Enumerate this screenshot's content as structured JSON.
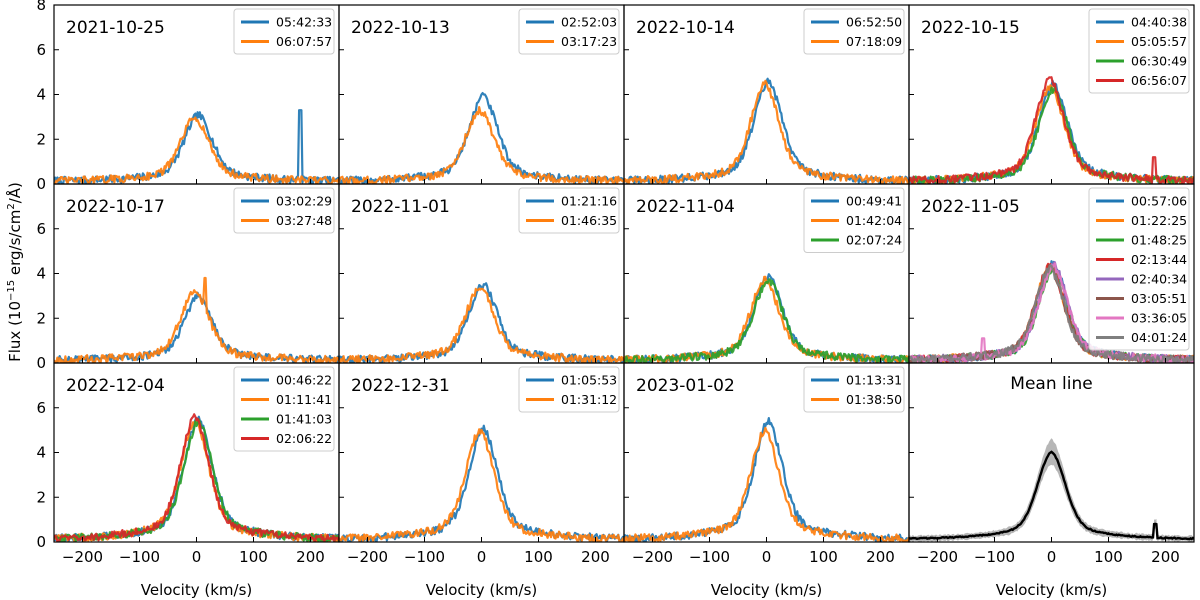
{
  "figure": {
    "ylabel": "Flux (10",
    "ylabel_exp": "−15",
    "ylabel_unit": " erg/s/cm",
    "ylabel_sq": "2",
    "ylabel_end": "/Å)",
    "xlabel": "Velocity (km/s)"
  },
  "colors": [
    "#1f77b4",
    "#ff7f0e",
    "#2ca02c",
    "#d62728",
    "#9467bd",
    "#8c564b",
    "#e377c2",
    "#7f7f7f"
  ],
  "chart_data": [
    {
      "type": "line",
      "title": "2021-10-25",
      "xlim": [
        -250,
        250
      ],
      "ylim": [
        0,
        8
      ],
      "xticks": [
        -200,
        -100,
        0,
        100,
        200
      ],
      "yticks": [
        0,
        2,
        4,
        6,
        8
      ],
      "series": [
        {
          "name": "05:42:33",
          "peak": 2.8,
          "spike": {
            "x": 182,
            "y": 3.3
          }
        },
        {
          "name": "06:07:57",
          "peak": 2.7
        }
      ]
    },
    {
      "type": "line",
      "title": "2022-10-13",
      "xlim": [
        -250,
        250
      ],
      "ylim": [
        0,
        8
      ],
      "xticks": [
        -200,
        -100,
        0,
        100,
        200
      ],
      "yticks": [
        0,
        2,
        4,
        6,
        8
      ],
      "series": [
        {
          "name": "02:52:03",
          "peak": 3.6,
          "spike": {
            "x": 5,
            "y": 4.0
          }
        },
        {
          "name": "03:17:23",
          "peak": 3.0
        }
      ]
    },
    {
      "type": "line",
      "title": "2022-10-14",
      "xlim": [
        -250,
        250
      ],
      "ylim": [
        0,
        8
      ],
      "xticks": [
        -200,
        -100,
        0,
        100,
        200
      ],
      "yticks": [
        0,
        2,
        4,
        6,
        8
      ],
      "series": [
        {
          "name": "06:52:50",
          "peak": 4.2
        },
        {
          "name": "07:18:09",
          "peak": 4.1
        }
      ]
    },
    {
      "type": "line",
      "title": "2022-10-15",
      "xlim": [
        -250,
        250
      ],
      "ylim": [
        0,
        8
      ],
      "xticks": [
        -200,
        -100,
        0,
        100,
        200
      ],
      "yticks": [
        0,
        2,
        4,
        6,
        8
      ],
      "series": [
        {
          "name": "04:40:38",
          "peak": 4.1
        },
        {
          "name": "05:05:57",
          "peak": 4.0
        },
        {
          "name": "06:30:49",
          "peak": 3.9
        },
        {
          "name": "06:56:07",
          "peak": 4.3,
          "spike": {
            "x": 180,
            "y": 1.2
          }
        }
      ]
    },
    {
      "type": "line",
      "title": "2022-10-17",
      "xlim": [
        -250,
        250
      ],
      "ylim": [
        0,
        8
      ],
      "xticks": [
        -200,
        -100,
        0,
        100,
        200
      ],
      "yticks": [
        0,
        2,
        4,
        6,
        8
      ],
      "series": [
        {
          "name": "03:02:29",
          "peak": 2.7
        },
        {
          "name": "03:27:48",
          "peak": 2.9,
          "spike": {
            "x": 15,
            "y": 3.8
          }
        }
      ]
    },
    {
      "type": "line",
      "title": "2022-11-01",
      "xlim": [
        -250,
        250
      ],
      "ylim": [
        0,
        8
      ],
      "xticks": [
        -200,
        -100,
        0,
        100,
        200
      ],
      "yticks": [
        0,
        2,
        4,
        6,
        8
      ],
      "series": [
        {
          "name": "01:21:16",
          "peak": 3.2
        },
        {
          "name": "01:46:35",
          "peak": 3.1
        }
      ]
    },
    {
      "type": "line",
      "title": "2022-11-04",
      "xlim": [
        -250,
        250
      ],
      "ylim": [
        0,
        8
      ],
      "xticks": [
        -200,
        -100,
        0,
        100,
        200
      ],
      "yticks": [
        0,
        2,
        4,
        6,
        8
      ],
      "series": [
        {
          "name": "00:49:41",
          "peak": 3.6
        },
        {
          "name": "01:42:04",
          "peak": 3.4
        },
        {
          "name": "02:07:24",
          "peak": 3.4
        }
      ]
    },
    {
      "type": "line",
      "title": "2022-11-05",
      "xlim": [
        -250,
        250
      ],
      "ylim": [
        0,
        8
      ],
      "xticks": [
        -200,
        -100,
        0,
        100,
        200
      ],
      "yticks": [
        0,
        2,
        4,
        6,
        8
      ],
      "series": [
        {
          "name": "00:57:06",
          "peak": 4.1
        },
        {
          "name": "01:22:25",
          "peak": 4.0
        },
        {
          "name": "01:48:25",
          "peak": 3.9
        },
        {
          "name": "02:13:44",
          "peak": 4.0
        },
        {
          "name": "02:40:34",
          "peak": 4.1
        },
        {
          "name": "03:05:51",
          "peak": 3.9
        },
        {
          "name": "03:36:05",
          "peak": 4.0,
          "spike": {
            "x": -120,
            "y": 1.1
          }
        },
        {
          "name": "04:01:24",
          "peak": 3.9
        }
      ]
    },
    {
      "type": "line",
      "title": "2022-12-04",
      "xlim": [
        -250,
        250
      ],
      "ylim": [
        0,
        8
      ],
      "xticks": [
        -200,
        -100,
        0,
        100,
        200
      ],
      "yticks": [
        0,
        2,
        4,
        6,
        8
      ],
      "series": [
        {
          "name": "00:46:22",
          "peak": 5.1
        },
        {
          "name": "01:11:41",
          "peak": 5.0
        },
        {
          "name": "01:41:03",
          "peak": 5.0
        },
        {
          "name": "02:06:22",
          "peak": 5.2
        }
      ]
    },
    {
      "type": "line",
      "title": "2022-12-31",
      "xlim": [
        -250,
        250
      ],
      "ylim": [
        0,
        8
      ],
      "xticks": [
        -200,
        -100,
        0,
        100,
        200
      ],
      "yticks": [
        0,
        2,
        4,
        6,
        8
      ],
      "series": [
        {
          "name": "01:05:53",
          "peak": 4.7
        },
        {
          "name": "01:31:12",
          "peak": 4.6
        }
      ]
    },
    {
      "type": "line",
      "title": "2023-01-02",
      "xlim": [
        -250,
        250
      ],
      "ylim": [
        0,
        8
      ],
      "xticks": [
        -200,
        -100,
        0,
        100,
        200
      ],
      "yticks": [
        0,
        2,
        4,
        6,
        8
      ],
      "series": [
        {
          "name": "01:13:31",
          "peak": 5.0
        },
        {
          "name": "01:38:50",
          "peak": 4.6
        }
      ]
    },
    {
      "type": "line",
      "title": "Mean line",
      "title_center": true,
      "xlim": [
        -250,
        250
      ],
      "ylim": [
        0,
        8
      ],
      "xticks": [
        -200,
        -100,
        0,
        100,
        200
      ],
      "yticks": [
        0,
        2,
        4,
        6,
        8
      ],
      "series": [],
      "mean": {
        "peak": 3.7,
        "band": 0.6,
        "spike": {
          "x": 182,
          "y": 0.8
        }
      }
    }
  ]
}
